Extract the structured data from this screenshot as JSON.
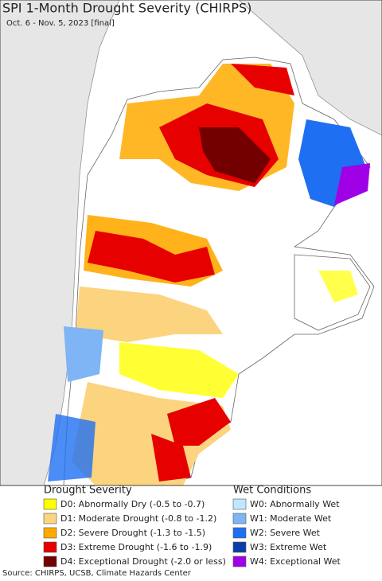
{
  "header": {
    "title": "SPI 1-Month Drought Severity (CHIRPS)",
    "subtitle": "Oct. 6 - Nov. 5, 2023 [final]"
  },
  "legend": {
    "drought": {
      "title": "Drought Severity",
      "items": [
        {
          "label": "D0: Abnormally Dry (-0.5 to -0.7)",
          "color": "#ffff00"
        },
        {
          "label": "D1: Moderate Drought (-0.8 to -1.2)",
          "color": "#fcd37f"
        },
        {
          "label": "D2: Severe Drought (-1.3 to -1.5)",
          "color": "#ffaa00"
        },
        {
          "label": "D3: Extreme Drought (-1.6 to -1.9)",
          "color": "#e60000"
        },
        {
          "label": "D4: Exceptional Drought (-2.0 or less)",
          "color": "#730000"
        }
      ]
    },
    "wet": {
      "title": "Wet Conditions",
      "items": [
        {
          "label": "W0: Abnormally Wet",
          "color": "#bfe8ff"
        },
        {
          "label": "W1: Moderate Wet",
          "color": "#7fb4f5"
        },
        {
          "label": "W2: Severe Wet",
          "color": "#1f6ff2"
        },
        {
          "label": "W3: Extreme Wet",
          "color": "#0b3fa8"
        },
        {
          "label": "W4: Exceptional Wet",
          "color": "#a000e6"
        }
      ]
    }
  },
  "footer": {
    "source": "Source: CHIRPS, UCSB, Climate Hazards Center"
  }
}
